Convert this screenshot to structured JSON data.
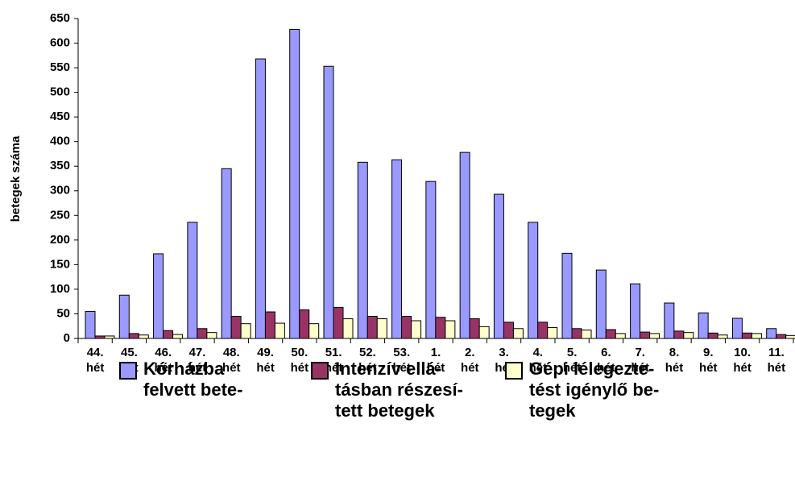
{
  "chart_data": {
    "type": "bar",
    "y_label": "betegek száma",
    "categories": [
      "44.\nhét",
      "45.\nhét",
      "46.\nhét",
      "47.\nhét",
      "48.\nhét",
      "49.\nhét",
      "50.\nhét",
      "51.\nhét",
      "52.\nhét",
      "53.\nhét",
      "1.\nhét",
      "2.\nhét",
      "3.\nhét",
      "4.\nhét",
      "5.\nhét",
      "6.\nhét",
      "7.\nhét",
      "8.\nhét",
      "9.\nhét",
      "10.\nhét",
      "11.\nhét"
    ],
    "series": [
      {
        "name": "Kórházba\nfelvett bete-",
        "color": "#9999ff",
        "values": [
          55,
          88,
          172,
          236,
          345,
          568,
          628,
          553,
          358,
          363,
          319,
          378,
          293,
          236,
          173,
          139,
          111,
          72,
          52,
          41,
          20
        ]
      },
      {
        "name": "Intenzív ellá-\ntásban részesí-\ntett betegek",
        "color": "#993366",
        "values": [
          5,
          10,
          16,
          20,
          45,
          54,
          58,
          63,
          45,
          45,
          43,
          40,
          33,
          33,
          20,
          18,
          13,
          15,
          11,
          11,
          8
        ]
      },
      {
        "name": "Gépi lélegezte-\ntést igénylő be-\ntegek",
        "color": "#ffffcc",
        "values": [
          5,
          7,
          8,
          12,
          30,
          31,
          30,
          40,
          40,
          36,
          36,
          24,
          20,
          22,
          17,
          10,
          10,
          12,
          7,
          10,
          6
        ]
      }
    ],
    "ylim": [
      0,
      650
    ],
    "yticks": [
      0,
      50,
      100,
      150,
      200,
      250,
      300,
      350,
      400,
      450,
      500,
      550,
      600,
      650
    ]
  }
}
